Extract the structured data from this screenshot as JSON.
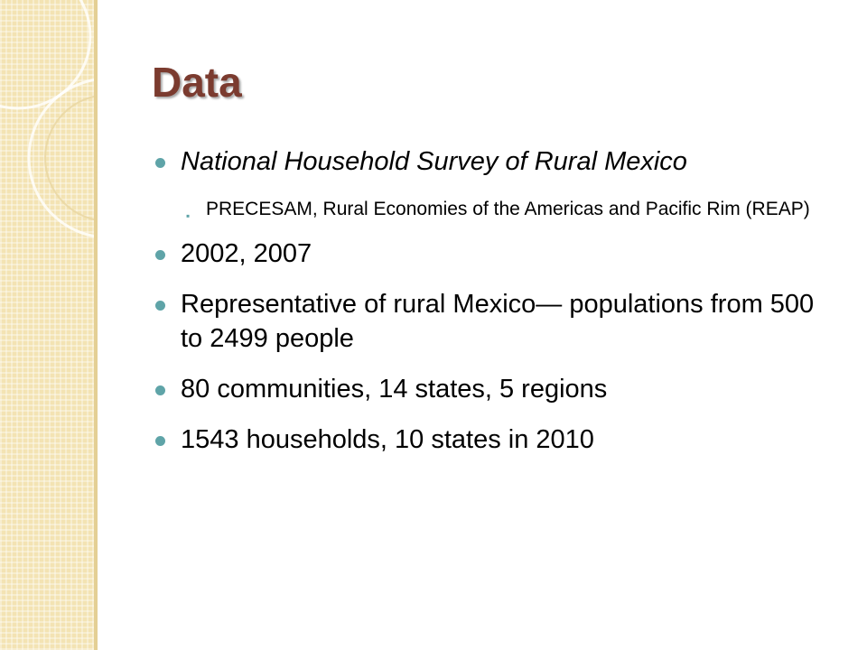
{
  "title": "Data",
  "bullets": [
    {
      "text": "National Household Survey of Rural Mexico",
      "sub": "PRECESAM, Rural Economies of the Americas and Pacific Rim (REAP)"
    },
    {
      "text": "2002, 2007"
    },
    {
      "text": "Representative of rural Mexico— populations from 500 to 2499 people"
    },
    {
      "text": "80 communities, 14 states, 5 regions"
    },
    {
      "text": "1543 households, 10 states in 2010"
    }
  ],
  "colors": {
    "title": "#7b3b2f",
    "bullet": "#5fa4a8",
    "band": "#f3e3b3"
  }
}
